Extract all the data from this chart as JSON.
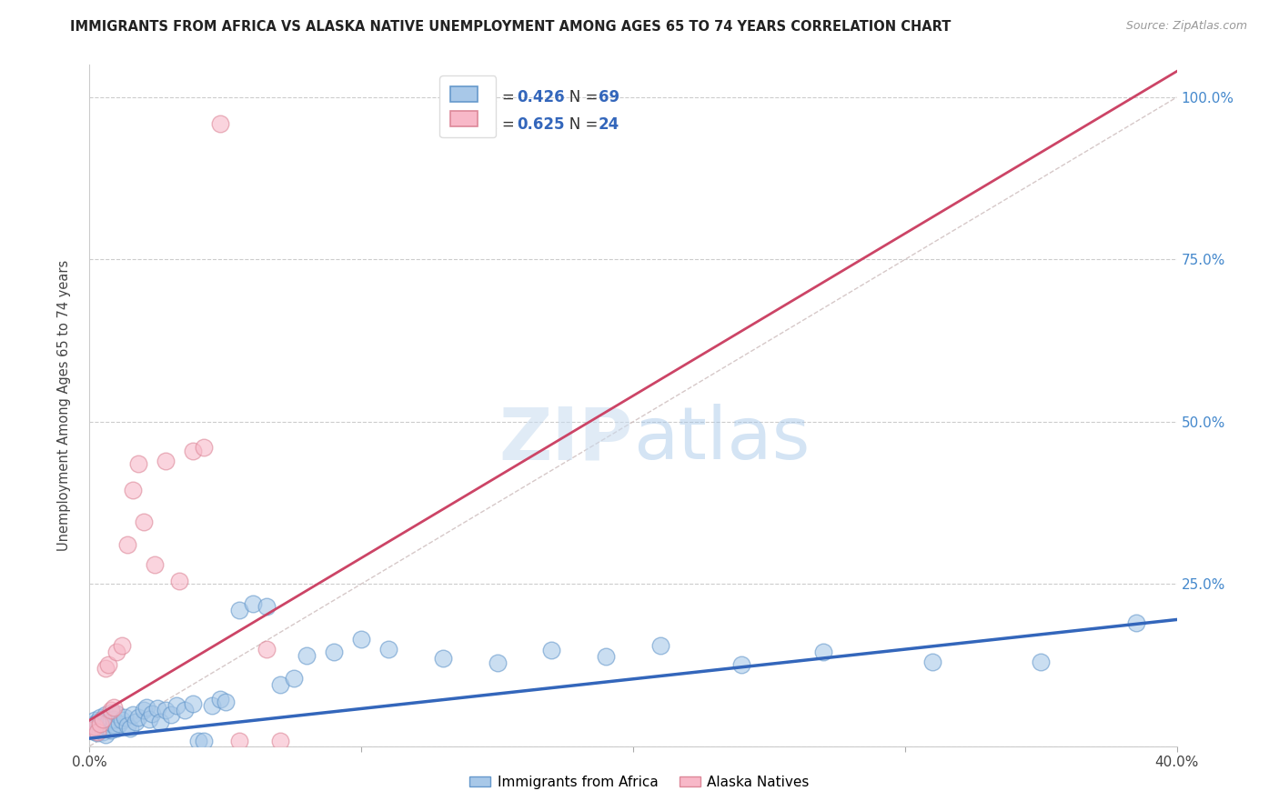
{
  "title": "IMMIGRANTS FROM AFRICA VS ALASKA NATIVE UNEMPLOYMENT AMONG AGES 65 TO 74 YEARS CORRELATION CHART",
  "source": "Source: ZipAtlas.com",
  "ylabel": "Unemployment Among Ages 65 to 74 years",
  "xlim": [
    0.0,
    0.4
  ],
  "ylim": [
    0.0,
    1.05
  ],
  "xticks": [
    0.0,
    0.1,
    0.2,
    0.3,
    0.4
  ],
  "yticks": [
    0.0,
    0.25,
    0.5,
    0.75,
    1.0
  ],
  "xtick_labels": [
    "0.0%",
    "",
    "",
    "",
    "40.0%"
  ],
  "ytick_labels": [
    "",
    "25.0%",
    "50.0%",
    "75.0%",
    "100.0%"
  ],
  "blue_R": "0.426",
  "blue_N": "69",
  "pink_R": "0.625",
  "pink_N": "24",
  "blue_fill_color": "#A8C8E8",
  "pink_fill_color": "#F8B8C8",
  "blue_edge_color": "#6699CC",
  "pink_edge_color": "#DD8899",
  "blue_line_color": "#3366BB",
  "pink_line_color": "#CC4466",
  "ref_line_color": "#CCBBBB",
  "legend_text_color": "#3366BB",
  "legend_label_blue": "Immigrants from Africa",
  "legend_label_pink": "Alaska Natives",
  "watermark": "ZIPatlas",
  "blue_scatter_x": [
    0.001,
    0.001,
    0.002,
    0.002,
    0.002,
    0.003,
    0.003,
    0.003,
    0.004,
    0.004,
    0.004,
    0.005,
    0.005,
    0.005,
    0.006,
    0.006,
    0.006,
    0.007,
    0.007,
    0.008,
    0.008,
    0.008,
    0.009,
    0.009,
    0.01,
    0.01,
    0.011,
    0.012,
    0.013,
    0.014,
    0.015,
    0.016,
    0.017,
    0.018,
    0.02,
    0.021,
    0.022,
    0.023,
    0.025,
    0.026,
    0.028,
    0.03,
    0.032,
    0.035,
    0.038,
    0.04,
    0.042,
    0.045,
    0.048,
    0.05,
    0.055,
    0.06,
    0.065,
    0.07,
    0.075,
    0.08,
    0.09,
    0.1,
    0.11,
    0.13,
    0.15,
    0.17,
    0.19,
    0.21,
    0.24,
    0.27,
    0.31,
    0.35,
    0.385
  ],
  "blue_scatter_y": [
    0.03,
    0.025,
    0.022,
    0.035,
    0.04,
    0.02,
    0.028,
    0.038,
    0.025,
    0.032,
    0.045,
    0.022,
    0.03,
    0.042,
    0.018,
    0.035,
    0.048,
    0.028,
    0.038,
    0.025,
    0.04,
    0.052,
    0.033,
    0.042,
    0.028,
    0.05,
    0.035,
    0.04,
    0.045,
    0.032,
    0.028,
    0.048,
    0.038,
    0.045,
    0.055,
    0.06,
    0.042,
    0.05,
    0.058,
    0.038,
    0.055,
    0.048,
    0.062,
    0.055,
    0.065,
    0.008,
    0.008,
    0.062,
    0.072,
    0.068,
    0.21,
    0.22,
    0.215,
    0.095,
    0.105,
    0.14,
    0.145,
    0.165,
    0.15,
    0.135,
    0.128,
    0.148,
    0.138,
    0.155,
    0.125,
    0.145,
    0.13,
    0.13,
    0.19
  ],
  "pink_scatter_x": [
    0.001,
    0.002,
    0.003,
    0.004,
    0.005,
    0.006,
    0.007,
    0.008,
    0.009,
    0.01,
    0.012,
    0.014,
    0.016,
    0.018,
    0.02,
    0.024,
    0.028,
    0.033,
    0.038,
    0.042,
    0.048,
    0.055,
    0.065,
    0.07
  ],
  "pink_scatter_y": [
    0.025,
    0.03,
    0.022,
    0.035,
    0.042,
    0.12,
    0.125,
    0.055,
    0.06,
    0.145,
    0.155,
    0.31,
    0.395,
    0.435,
    0.345,
    0.28,
    0.44,
    0.255,
    0.455,
    0.46,
    0.96,
    0.008,
    0.15,
    0.008
  ],
  "blue_trend_x": [
    0.0,
    0.4
  ],
  "blue_trend_y": [
    0.012,
    0.195
  ],
  "pink_trend_x": [
    0.0,
    0.4
  ],
  "pink_trend_y": [
    0.04,
    1.04
  ],
  "ref_line_x": [
    0.0,
    0.4
  ],
  "ref_line_y": [
    0.0,
    1.0
  ]
}
